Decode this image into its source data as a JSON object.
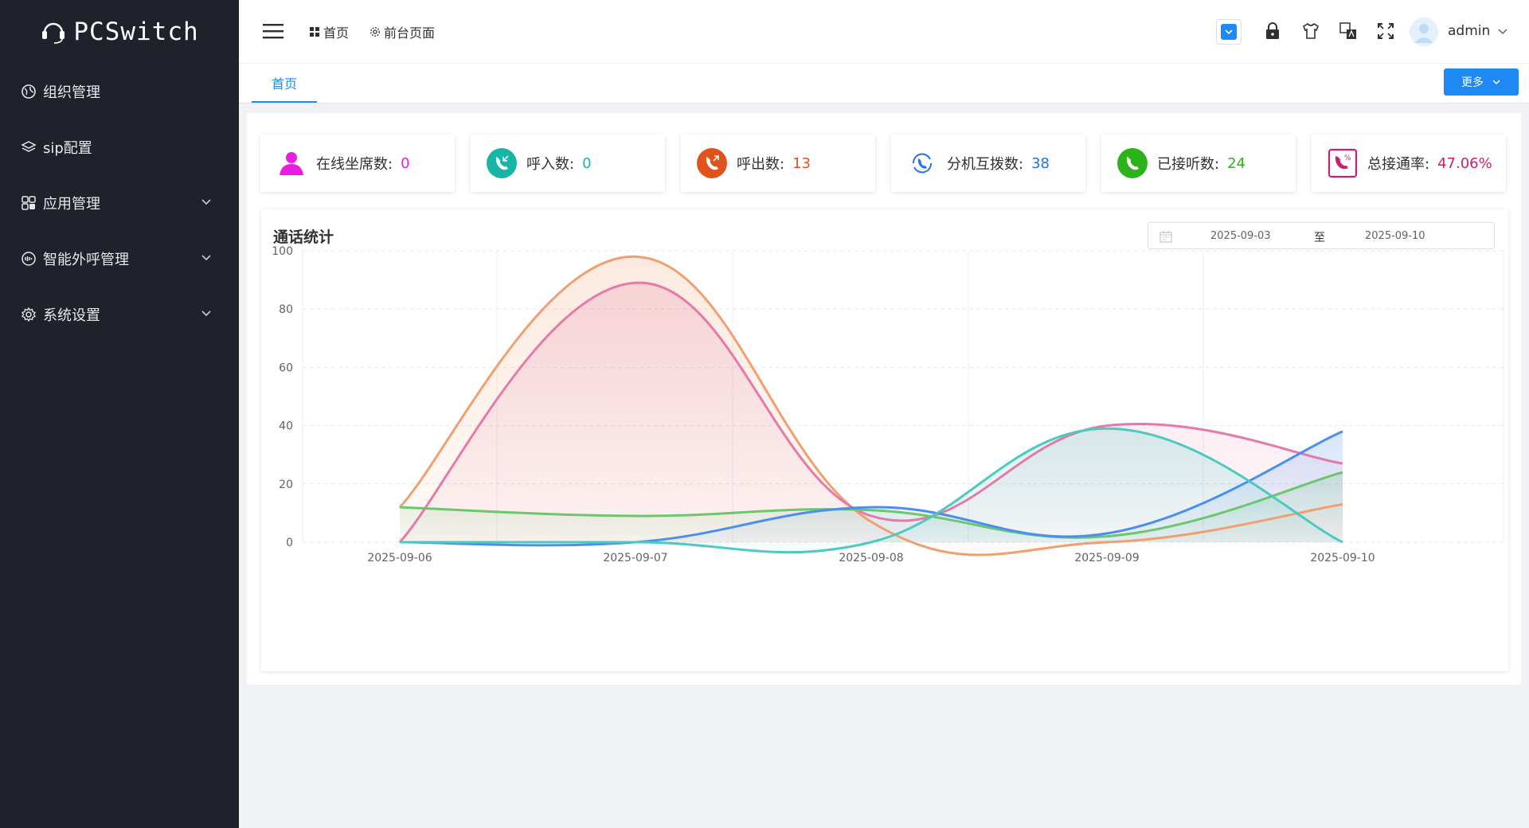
{
  "app": {
    "logo_text": "PCSwitch"
  },
  "sidebar": {
    "items": [
      {
        "label": "组织管理",
        "icon": "org-icon",
        "has_children": false
      },
      {
        "label": "sip配置",
        "icon": "layers-icon",
        "has_children": false
      },
      {
        "label": "应用管理",
        "icon": "apps-icon",
        "has_children": true
      },
      {
        "label": "智能外呼管理",
        "icon": "ai-call-icon",
        "has_children": true
      },
      {
        "label": "系统设置",
        "icon": "gear-icon",
        "has_children": true
      }
    ]
  },
  "header": {
    "breadcrumb_home": "首页",
    "breadcrumb_front": "前台页面",
    "username": "admin"
  },
  "tabs": {
    "active": "首页",
    "more_label": "更多"
  },
  "stats": [
    {
      "label": "在线坐席数:",
      "value": "0",
      "color": "#e91ee0",
      "icon": "agents-icon"
    },
    {
      "label": "呼入数:",
      "value": "0",
      "color": "#16b5a6",
      "icon": "incoming-call-icon"
    },
    {
      "label": "呼出数:",
      "value": "13",
      "color": "#e0531b",
      "icon": "outgoing-call-icon"
    },
    {
      "label": "分机互拨数:",
      "value": "38",
      "color": "#1e74e8",
      "icon": "extension-call-icon"
    },
    {
      "label": "已接听数:",
      "value": "24",
      "color": "#2bb31b",
      "icon": "answered-call-icon"
    },
    {
      "label": "总接通率:",
      "value": "47.06%",
      "color": "#cc1f6f",
      "icon": "rate-icon"
    }
  ],
  "chart_panel": {
    "title": "通话统计",
    "date_from": "2025-09-03",
    "date_sep": "至",
    "date_to": "2025-09-10"
  },
  "chart_data": {
    "type": "area",
    "title": "通话统计",
    "categories": [
      "2025-09-06",
      "2025-09-07",
      "2025-09-08",
      "2025-09-09",
      "2025-09-10"
    ],
    "ylim": [
      0,
      100
    ],
    "yticks": [
      0,
      20,
      40,
      60,
      80,
      100
    ],
    "smooth": true,
    "grid": true,
    "series": [
      {
        "name": "series-orange",
        "color": "#f0a070",
        "values": [
          12,
          98,
          7,
          0,
          13
        ]
      },
      {
        "name": "series-pink",
        "color": "#e47aa8",
        "values": [
          0,
          89,
          9,
          40,
          27
        ]
      },
      {
        "name": "series-green",
        "color": "#6cc66c",
        "values": [
          12,
          9,
          11,
          2,
          24
        ]
      },
      {
        "name": "series-blue",
        "color": "#4a8ff0",
        "values": [
          0,
          0,
          12,
          3,
          38
        ]
      },
      {
        "name": "series-teal",
        "color": "#4ccac0",
        "values": [
          0,
          0,
          0,
          39,
          0
        ]
      }
    ]
  }
}
